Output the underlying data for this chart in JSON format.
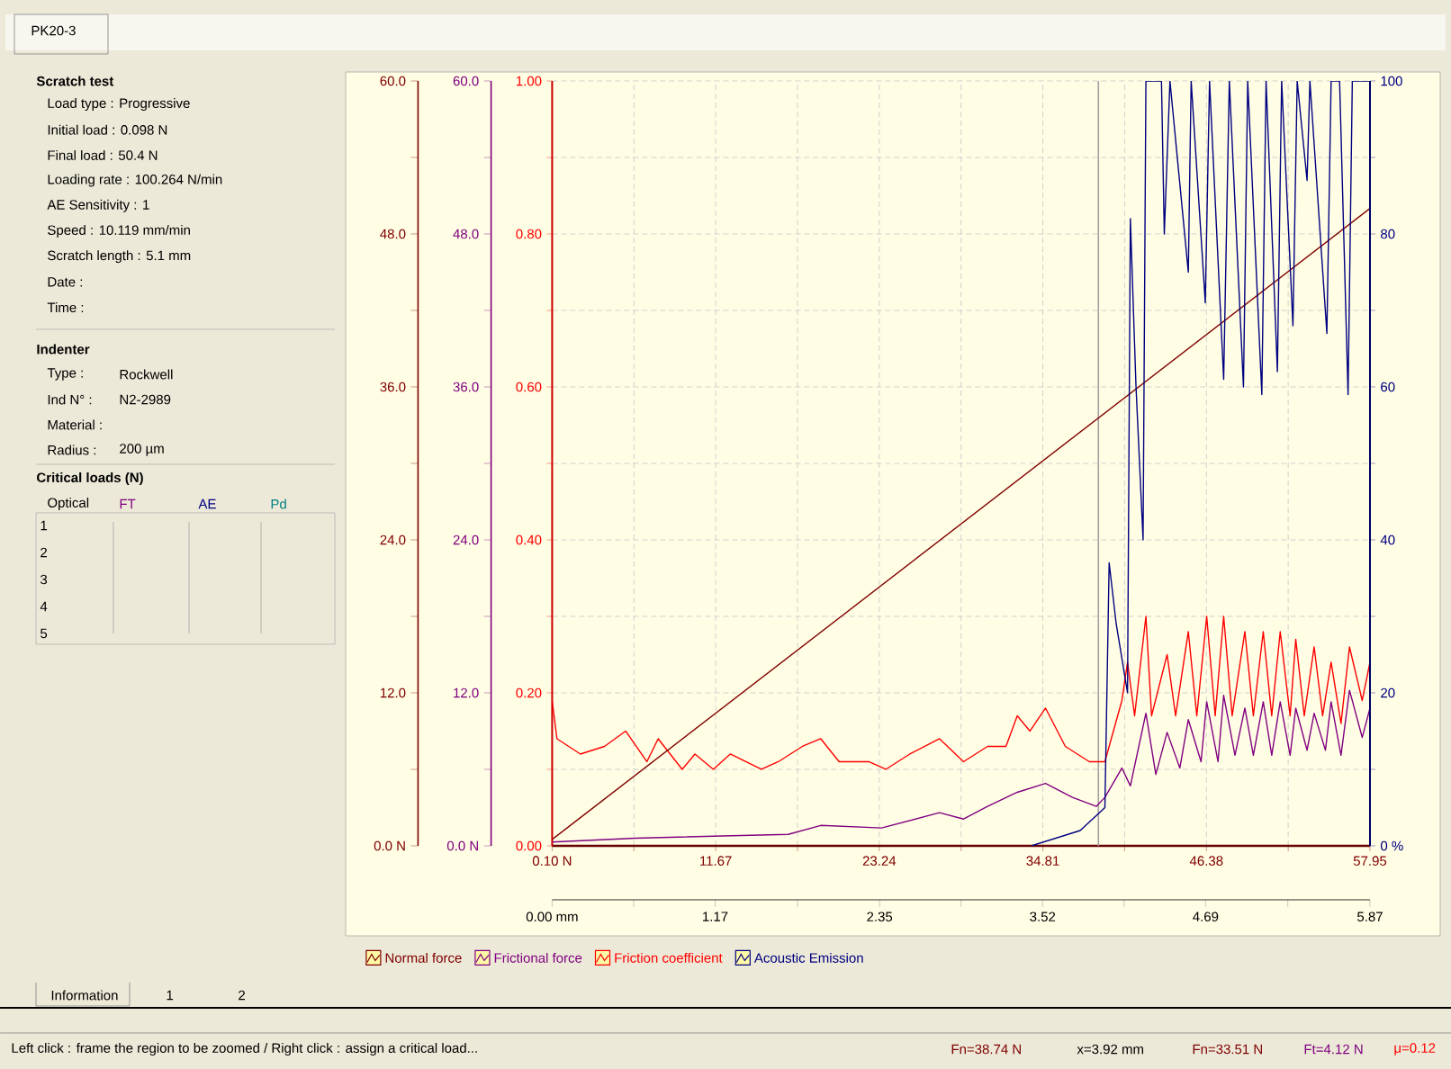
{
  "chart_data": {
    "type": "line",
    "xlim": [
      0.1,
      57.95
    ],
    "xticks": [
      {
        "value": 0.1,
        "label": "0.10 N"
      },
      {
        "value": 5.885,
        "label": null
      },
      11.67,
      {
        "value": 17.455,
        "label": null
      },
      23.24,
      {
        "value": 29.025,
        "label": null
      },
      34.81,
      {
        "value": 40.595,
        "label": null
      },
      46.38,
      {
        "value": 52.165,
        "label": null
      },
      57.95
    ],
    "x2lim": [
      0,
      5.87
    ],
    "x2ticks": [
      {
        "value": 0,
        "label": "0.00 mm"
      },
      {
        "value": 0.585,
        "label": null
      },
      1.17,
      {
        "value": 1.76,
        "label": null
      },
      2.35,
      {
        "value": 2.935,
        "label": null
      },
      3.52,
      {
        "value": 4.105,
        "label": null
      },
      4.69,
      {
        "value": 5.28,
        "label": null
      },
      5.87
    ],
    "ylim": [
      0,
      60
    ],
    "yticks": [
      {
        "value": 0,
        "label": "0.0 N"
      },
      {
        "value": 6,
        "label": null
      },
      {
        "value": 12,
        "label": "12.0"
      },
      {
        "value": 18,
        "label": null
      },
      {
        "value": 24,
        "label": "24.0"
      },
      {
        "value": 30,
        "label": null
      },
      {
        "value": 36,
        "label": "36.0"
      },
      {
        "value": 42,
        "label": null
      },
      {
        "value": 48,
        "label": "48.0"
      },
      {
        "value": 54,
        "label": null
      },
      {
        "value": 60,
        "label": "60.0"
      }
    ],
    "y3lim": [
      0,
      1
    ],
    "y3ticks": [
      {
        "value": 0,
        "label": "0.00"
      },
      {
        "value": 0.1,
        "label": null
      },
      {
        "value": 0.2,
        "label": "0.20"
      },
      {
        "value": 0.3,
        "label": null
      },
      {
        "value": 0.4,
        "label": "0.40"
      },
      {
        "value": 0.5,
        "label": null
      },
      {
        "value": 0.6,
        "label": "0.60"
      },
      {
        "value": 0.7,
        "label": null
      },
      {
        "value": 0.8,
        "label": "0.80"
      },
      {
        "value": 0.9,
        "label": null
      },
      {
        "value": 1,
        "label": "1.00"
      }
    ],
    "y2lim": [
      0,
      100
    ],
    "y2ticks": [
      {
        "value": 0,
        "label": "0 %"
      },
      {
        "value": 10,
        "label": null
      },
      20,
      {
        "value": 30,
        "label": null
      },
      40,
      {
        "value": 50,
        "label": null
      },
      60,
      {
        "value": 70,
        "label": null
      },
      80,
      {
        "value": 90,
        "label": null
      },
      100
    ],
    "grid": true,
    "legend": "bottom",
    "ref_lines": [
      {
        "axis": "x",
        "value": 38.74,
        "color": "#a0a0a0"
      }
    ],
    "series": [
      {
        "name": "Normal force",
        "color": "#800000",
        "axis": "y",
        "x": [
          0.1,
          57.95
        ],
        "values": [
          0.5,
          50.0
        ]
      },
      {
        "name": "Frictional force",
        "color": "#800080",
        "axis": "y",
        "x": [
          0.1,
          6.0,
          16.8,
          19.1,
          23.4,
          27.5,
          29.2,
          30.9,
          33.0,
          35.0,
          36.9,
          38.6,
          39.2,
          40.4,
          41.0,
          42.1,
          42.8,
          43.6,
          44.5,
          45.1,
          46.0,
          46.4,
          47.2,
          47.6,
          48.4,
          49.1,
          49.7,
          50.4,
          51.0,
          51.6,
          52.3,
          52.7,
          53.5,
          54.0,
          54.8,
          55.2,
          55.9,
          56.5,
          57.4,
          57.95
        ],
        "values": [
          0.3,
          0.6,
          0.9,
          1.6,
          1.4,
          2.6,
          2.1,
          3.1,
          4.2,
          4.9,
          3.8,
          3.1,
          3.8,
          6.1,
          4.7,
          10.4,
          5.6,
          8.9,
          6.1,
          9.9,
          6.6,
          11.3,
          6.6,
          11.8,
          7.1,
          10.8,
          7.1,
          11.3,
          7.1,
          11.3,
          7.1,
          10.8,
          7.5,
          10.4,
          7.5,
          11.3,
          7.1,
          12.2,
          8.5,
          10.8
        ]
      },
      {
        "name": "Friction coefficient",
        "color": "#ff0000",
        "axis": "y3",
        "x": [
          0.1,
          0.44,
          2.1,
          3.8,
          5.3,
          6.8,
          7.6,
          9.3,
          10.2,
          11.5,
          12.7,
          14.9,
          16.1,
          17.8,
          19.1,
          20.4,
          22.5,
          23.7,
          25.4,
          27.5,
          29.2,
          30.9,
          32.2,
          33.0,
          33.9,
          35.0,
          36.4,
          38.1,
          39.2,
          40.4,
          40.8,
          41.3,
          42.1,
          42.5,
          43.6,
          44.2,
          45.1,
          45.7,
          46.4,
          47.0,
          47.6,
          48.2,
          49.1,
          49.7,
          50.4,
          51.0,
          51.6,
          52.3,
          52.7,
          53.3,
          54.0,
          54.6,
          55.2,
          55.9,
          56.5,
          57.4,
          57.95
        ],
        "values": [
          0.19,
          0.14,
          0.12,
          0.13,
          0.15,
          0.11,
          0.14,
          0.1,
          0.12,
          0.1,
          0.12,
          0.1,
          0.11,
          0.13,
          0.14,
          0.11,
          0.11,
          0.1,
          0.12,
          0.14,
          0.11,
          0.13,
          0.13,
          0.17,
          0.15,
          0.18,
          0.13,
          0.11,
          0.11,
          0.19,
          0.24,
          0.17,
          0.3,
          0.17,
          0.25,
          0.17,
          0.28,
          0.17,
          0.3,
          0.17,
          0.3,
          0.17,
          0.28,
          0.17,
          0.28,
          0.17,
          0.28,
          0.17,
          0.27,
          0.17,
          0.26,
          0.17,
          0.24,
          0.16,
          0.26,
          0.19,
          0.24
        ]
      },
      {
        "name": "Acoustic Emission",
        "color": "#000080",
        "axis": "y2",
        "x": [
          34.0,
          37.45,
          39.2,
          39.5,
          40.0,
          40.8,
          41.0,
          41.4,
          41.9,
          42.1,
          43.2,
          43.4,
          43.8,
          45.1,
          45.3,
          46.3,
          46.6,
          47.6,
          48.0,
          49.0,
          49.3,
          50.3,
          50.6,
          51.4,
          51.7,
          52.5,
          52.8,
          53.5,
          53.7,
          54.9,
          55.2,
          55.8,
          56.4,
          56.7,
          57.95
        ],
        "values": [
          0,
          2,
          5,
          37,
          29,
          20,
          82,
          60,
          40,
          100,
          100,
          80,
          100,
          75,
          100,
          71,
          100,
          61,
          100,
          60,
          100,
          59,
          100,
          62,
          100,
          68,
          100,
          87,
          100,
          67,
          100,
          100,
          59,
          100,
          100
        ]
      }
    ],
    "annotations": [
      "PK20-3",
      "Scratch test",
      "Load type : Progressive",
      "Initial load : 0.098 N",
      "Final load : 50.4 N",
      "Loading rate : 100.264 N/min",
      "AE Sensitivity : 1",
      "Speed : 10.119 mm/min",
      "Scratch length : 5.1 mm",
      "Date :",
      "Time :",
      "Indenter",
      "Type :",
      "Rockwell",
      "Ind N° :",
      "N2-2989",
      "Material :",
      "Radius :",
      "200 µm",
      "Critical loads (N)",
      "Optical",
      "FT",
      "AE",
      "Pd",
      "1",
      "2",
      "3",
      "4",
      "5",
      "Information",
      "1",
      "2",
      "Left click : frame the region to be zoomed / Right click : assign a critical load...",
      "Fn=38.74 N",
      "x=3.92 mm",
      "Fn=33.51 N",
      "Ft=4.12 N",
      "μ=0.12"
    ]
  }
}
